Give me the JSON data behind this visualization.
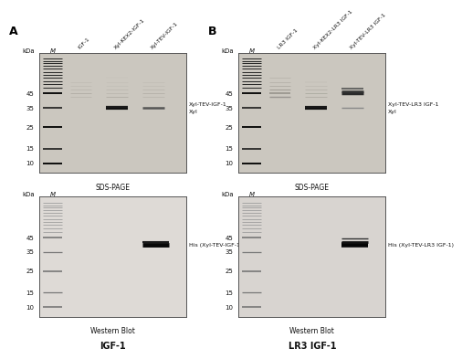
{
  "panel_A_label": "A",
  "panel_B_label": "B",
  "panel_A_title": "IGF-1",
  "panel_B_title": "LR3 IGF-1",
  "sds_label": "SDS-PAGE",
  "wb_label": "Western Blot",
  "kda_label": "kDa",
  "M_label": "M",
  "marker_kda": [
    45,
    35,
    25,
    15,
    10
  ],
  "sds_bg": "#cbc7bf",
  "wb_bg_A": "#dedad6",
  "wb_bg_B": "#d8d4d0",
  "fig_bg": "#ffffff",
  "A_sds_col_labels": [
    "IGF-1",
    "Xyl-KEX2-IGF-1",
    "Xyl-TEV-IGF-1"
  ],
  "B_sds_col_labels": [
    "LR3 IGF-1",
    "Xyl-KEX2-LR3 IGF-1",
    "Xyl-TEV-LR3 IGF-1"
  ],
  "A_sds_annotation1": "Xyl-TEV-IGF-1",
  "A_sds_annotation2": "Xyl",
  "B_sds_annotation1": "Xyl-TEV-LR3 IGF-1",
  "B_sds_annotation2": "Xyl",
  "A_wb_annotation": "His (Xyl-TEV-IGF-1 )",
  "B_wb_annotation": "His (Xyl-TEV-LR3 IGF-1)"
}
